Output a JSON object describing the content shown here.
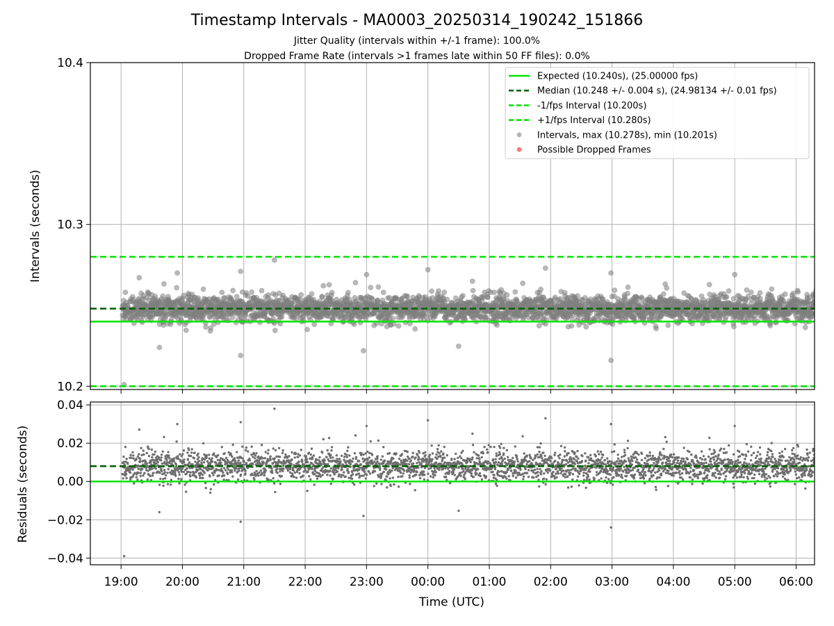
{
  "title": "Timestamp Intervals - MA0003_20250314_190242_151866",
  "subtitle_1": "Jitter Quality (intervals within +/-1 frame): 100.0%",
  "subtitle_2": "Dropped Frame Rate (intervals >1 frames late within 50 FF files): 0.0%",
  "colors": {
    "expected": "#00e600",
    "median": "#006400",
    "bounds": "#00e600",
    "points": "#808080",
    "dropped": "#ff6666",
    "grid": "#b0b0b0"
  },
  "chart_data": [
    {
      "type": "scatter",
      "panel": "top",
      "ylabel": "Intervals (seconds)",
      "ylim": [
        10.198,
        10.4
      ],
      "yticks": [
        "10.2",
        "10.3",
        "10.4"
      ],
      "ytick_values": [
        10.2,
        10.3,
        10.4
      ],
      "xlim_hours": [
        18.5,
        30.3
      ],
      "grid": true,
      "legend_position": "top-right",
      "legend": [
        {
          "label": "Expected (10.240s), (25.00000 fps)",
          "style": "solid-line",
          "color": "#00e600"
        },
        {
          "label": "Median (10.248 +/- 0.004 s), (24.98134 +/- 0.01 fps)",
          "style": "dashed-line",
          "color": "#006400"
        },
        {
          "label": "-1/fps Interval (10.200s)",
          "style": "dashed-line",
          "color": "#00e600"
        },
        {
          "label": "+1/fps Interval (10.280s)",
          "style": "dashed-line",
          "color": "#00e600"
        },
        {
          "label": "Intervals, max (10.278s), min (10.201s)",
          "style": "dot",
          "color": "#808080"
        },
        {
          "label": "Possible Dropped Frames",
          "style": "dot",
          "color": "#ff6666"
        }
      ],
      "lines": {
        "expected": 10.24,
        "median": 10.248,
        "minus_one_frame": 10.2,
        "plus_one_frame": 10.28
      },
      "series": [
        {
          "name": "Intervals",
          "summary": {
            "count_approx": 3600,
            "center": 10.248,
            "spread_typical": 0.004,
            "max": 10.278,
            "min": 10.201,
            "max_time": "21:30",
            "min_time": "19:03"
          }
        },
        {
          "name": "Possible Dropped Frames",
          "values": []
        }
      ],
      "outliers": [
        {
          "x": "19:03",
          "y": 10.201
        },
        {
          "x": "21:30",
          "y": 10.278
        },
        {
          "x": "20:57",
          "y": 10.219
        },
        {
          "x": "02:59",
          "y": 10.216
        },
        {
          "x": "22:57",
          "y": 10.222
        },
        {
          "x": "23:00",
          "y": 10.269
        },
        {
          "x": "01:55",
          "y": 10.273
        },
        {
          "x": "20:57",
          "y": 10.271
        },
        {
          "x": "00:00",
          "y": 10.272
        },
        {
          "x": "19:55",
          "y": 10.27
        },
        {
          "x": "02:59",
          "y": 10.27
        },
        {
          "x": "05:00",
          "y": 10.269
        }
      ]
    },
    {
      "type": "scatter",
      "panel": "bottom",
      "xlabel": "Time (UTC)",
      "ylabel": "Residuals (seconds)",
      "ylim": [
        -0.0435,
        0.0415
      ],
      "yticks": [
        "−0.04",
        "−0.02",
        "0.00",
        "0.02",
        "0.04"
      ],
      "ytick_values": [
        -0.04,
        -0.02,
        0.0,
        0.02,
        0.04
      ],
      "xticks": [
        "19:00",
        "20:00",
        "21:00",
        "22:00",
        "23:00",
        "00:00",
        "01:00",
        "02:00",
        "03:00",
        "04:00",
        "05:00",
        "06:00"
      ],
      "xtick_hours": [
        19,
        20,
        21,
        22,
        23,
        24,
        25,
        26,
        27,
        28,
        29,
        30
      ],
      "xlim_hours": [
        18.5,
        30.3
      ],
      "grid": true,
      "lines": {
        "zero": 0.0,
        "median_residual": 0.008
      },
      "series": [
        {
          "name": "Residuals",
          "summary": {
            "center": 0.008,
            "spread_typical": 0.004,
            "max": 0.038,
            "min": -0.039
          }
        }
      ]
    }
  ]
}
